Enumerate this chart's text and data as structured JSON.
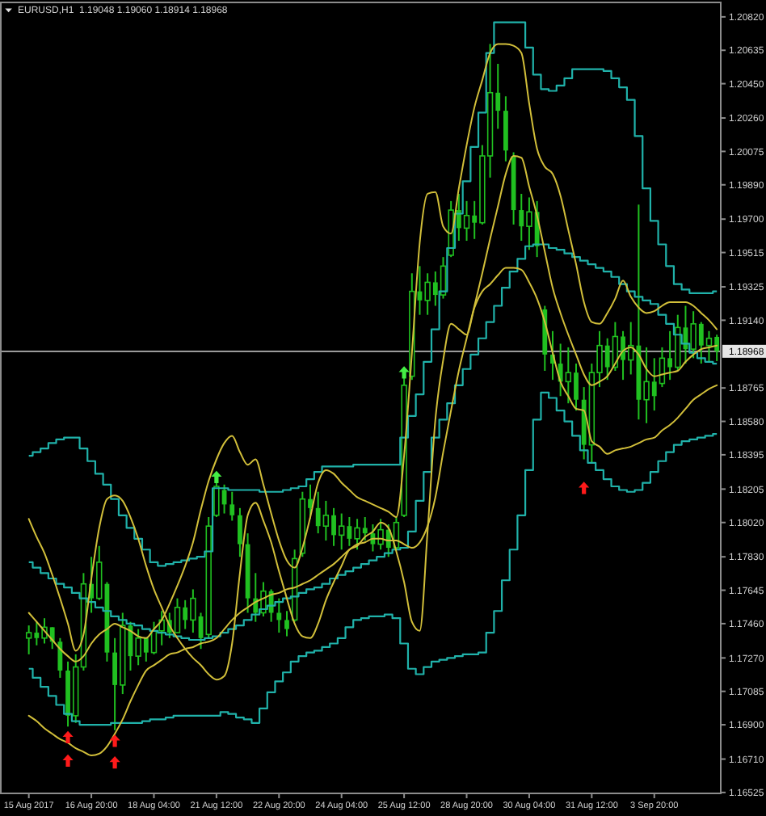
{
  "chart_data": {
    "type": "candlestick",
    "title": "EURUSD,H1  1.19048 1.19060 1.18914 1.18968",
    "categories": [
      "15 Aug 2017",
      null,
      null,
      null,
      null,
      null,
      null,
      null,
      "16 Aug 20:00",
      null,
      null,
      null,
      null,
      null,
      null,
      null,
      "18 Aug 04:00",
      null,
      null,
      null,
      null,
      null,
      null,
      null,
      "21 Aug 12:00",
      null,
      null,
      null,
      null,
      null,
      null,
      null,
      "22 Aug 20:00",
      null,
      null,
      null,
      null,
      null,
      null,
      null,
      "24 Aug 04:00",
      null,
      null,
      null,
      null,
      null,
      null,
      null,
      "25 Aug 12:00",
      null,
      null,
      null,
      null,
      null,
      null,
      null,
      "28 Aug 20:00",
      null,
      null,
      null,
      null,
      null,
      null,
      null,
      "30 Aug 04:00",
      null,
      null,
      null,
      null,
      null,
      null,
      null,
      "31 Aug 12:00",
      null,
      null,
      null,
      null,
      null,
      null,
      null,
      "3 Sep 20:00",
      null,
      null,
      null,
      null,
      null,
      null,
      null,
      null
    ],
    "ylim": [
      1.1652,
      1.209
    ],
    "yticks": [
      {
        "value": 1.2082,
        "label": "1.20820"
      },
      1.20635,
      {
        "value": 1.2045,
        "label": "1.20450"
      },
      {
        "value": 1.2026,
        "label": "1.20260"
      },
      1.20075,
      {
        "value": 1.1989,
        "label": "1.19890"
      },
      {
        "value": 1.197,
        "label": "1.19700"
      },
      1.19515,
      1.19325,
      {
        "value": 1.1914,
        "label": "1.19140"
      },
      1.18765,
      {
        "value": 1.1858,
        "label": "1.18580"
      },
      1.18395,
      1.18205,
      {
        "value": 1.1802,
        "label": "1.18020"
      },
      {
        "value": 1.1783,
        "label": "1.17830"
      },
      1.17645,
      {
        "value": 1.1746,
        "label": "1.17460"
      },
      {
        "value": 1.1727,
        "label": "1.17270"
      },
      1.17085,
      {
        "value": 1.169,
        "label": "1.16900"
      },
      {
        "value": 1.1671,
        "label": "1.16710"
      },
      1.16525
    ],
    "ref_lines": [
      {
        "axis": "y",
        "value": 1.18968,
        "label": "1.18968",
        "color": "#b4b4b4"
      }
    ],
    "series": [
      {
        "color": "#20c020",
        "ohlc": [
          [
            1.1738,
            1.1745,
            1.1729,
            1.1741
          ],
          [
            1.1741,
            1.1747,
            1.1734,
            1.1738
          ],
          [
            1.1738,
            1.1749,
            1.1735,
            1.1744
          ],
          [
            1.1744,
            1.1744,
            1.1732,
            1.1736
          ],
          [
            1.1736,
            1.1738,
            1.1716,
            1.172
          ],
          [
            1.172,
            1.1725,
            1.1689,
            1.1695
          ],
          [
            1.1695,
            1.1729,
            1.1691,
            1.1722
          ],
          [
            1.1722,
            1.1774,
            1.172,
            1.1768
          ],
          [
            1.1768,
            1.1783,
            1.1752,
            1.176
          ],
          [
            1.176,
            1.1789,
            1.1759,
            1.178
          ],
          [
            1.1768,
            1.1769,
            1.1725,
            1.173
          ],
          [
            1.173,
            1.1738,
            1.1687,
            1.1712
          ],
          [
            1.1712,
            1.1752,
            1.1707,
            1.1745
          ],
          [
            1.1745,
            1.1747,
            1.172,
            1.1728
          ],
          [
            1.1728,
            1.1743,
            1.1723,
            1.1738
          ],
          [
            1.1738,
            1.1738,
            1.1725,
            1.173
          ],
          [
            1.173,
            1.1747,
            1.1729,
            1.1742
          ],
          [
            1.1742,
            1.1753,
            1.1734,
            1.1748
          ],
          [
            1.1748,
            1.1752,
            1.1738,
            1.1741
          ],
          [
            1.1741,
            1.176,
            1.1741,
            1.1755
          ],
          [
            1.1755,
            1.1759,
            1.1743,
            1.1748
          ],
          [
            1.1748,
            1.1765,
            1.1741,
            1.176
          ],
          [
            1.175,
            1.1752,
            1.1732,
            1.1738
          ],
          [
            1.174,
            1.1805,
            1.1738,
            1.18
          ],
          [
            1.1806,
            1.1828,
            1.1805,
            1.1822
          ],
          [
            1.182,
            1.1823,
            1.1807,
            1.1812
          ],
          [
            1.1812,
            1.1819,
            1.1803,
            1.1806
          ],
          [
            1.1806,
            1.181,
            1.1783,
            1.179
          ],
          [
            1.179,
            1.1796,
            1.1752,
            1.176
          ],
          [
            1.176,
            1.1774,
            1.1747,
            1.1752
          ],
          [
            1.1752,
            1.1769,
            1.175,
            1.1764
          ],
          [
            1.1764,
            1.1765,
            1.1747,
            1.1752
          ],
          [
            1.1752,
            1.176,
            1.1741,
            1.1748
          ],
          [
            1.1748,
            1.1753,
            1.1739,
            1.1743
          ],
          [
            1.1748,
            1.1787,
            1.1747,
            1.1782
          ],
          [
            1.1785,
            1.1819,
            1.1783,
            1.1815
          ],
          [
            1.1815,
            1.1823,
            1.1804,
            1.181
          ],
          [
            1.181,
            1.1819,
            1.1796,
            1.18
          ],
          [
            1.18,
            1.1814,
            1.1792,
            1.1806
          ],
          [
            1.1806,
            1.181,
            1.1789,
            1.1795
          ],
          [
            1.1795,
            1.1807,
            1.1787,
            1.18
          ],
          [
            1.18,
            1.1805,
            1.1789,
            1.1793
          ],
          [
            1.1793,
            1.1804,
            1.1787,
            1.1799
          ],
          [
            1.1799,
            1.1805,
            1.1792,
            1.1796
          ],
          [
            1.1796,
            1.1801,
            1.1786,
            1.179
          ],
          [
            1.179,
            1.1804,
            1.1787,
            1.1798
          ],
          [
            1.1798,
            1.1801,
            1.1783,
            1.1788
          ],
          [
            1.1788,
            1.1805,
            1.1787,
            1.1802
          ],
          [
            1.1806,
            1.1884,
            1.1805,
            1.1878
          ],
          [
            1.1883,
            1.194,
            1.1881,
            1.193
          ],
          [
            1.193,
            1.1944,
            1.1917,
            1.1925
          ],
          [
            1.1925,
            1.194,
            1.1917,
            1.1935
          ],
          [
            1.1935,
            1.1941,
            1.1922,
            1.1928
          ],
          [
            1.1928,
            1.1949,
            1.1926,
            1.1944
          ],
          [
            1.195,
            1.198,
            1.1949,
            1.1975
          ],
          [
            1.1975,
            1.1984,
            1.1958,
            1.1965
          ],
          [
            1.1965,
            1.198,
            1.1958,
            1.1972
          ],
          [
            1.1972,
            1.198,
            1.1959,
            1.1968
          ],
          [
            1.1968,
            1.2011,
            1.1967,
            1.2005
          ],
          [
            1.2005,
            1.2067,
            1.1993,
            1.204
          ],
          [
            1.204,
            1.2056,
            1.202,
            1.203
          ],
          [
            1.203,
            1.2038,
            1.2002,
            1.2008
          ],
          [
            1.2005,
            1.2007,
            1.1967,
            1.1975
          ],
          [
            1.1975,
            1.1984,
            1.1958,
            1.1966
          ],
          [
            1.1966,
            1.1982,
            1.1953,
            1.1974
          ],
          [
            1.1974,
            1.198,
            1.1949,
            1.1955
          ],
          [
            1.192,
            1.1922,
            1.1886,
            1.1895
          ],
          [
            1.1895,
            1.1908,
            1.1881,
            1.189
          ],
          [
            1.189,
            1.1901,
            1.1872,
            1.188
          ],
          [
            1.188,
            1.1899,
            1.1868,
            1.1885
          ],
          [
            1.1885,
            1.189,
            1.1864,
            1.187
          ],
          [
            1.187,
            1.1877,
            1.1837,
            1.1845
          ],
          [
            1.1845,
            1.189,
            1.1835,
            1.1885
          ],
          [
            1.1885,
            1.1908,
            1.1877,
            1.19
          ],
          [
            1.19,
            1.1904,
            1.1881,
            1.1888
          ],
          [
            1.1888,
            1.1913,
            1.1886,
            1.1905
          ],
          [
            1.1905,
            1.1908,
            1.1881,
            1.1892
          ],
          [
            1.1892,
            1.1913,
            1.1884,
            1.19
          ],
          [
            1.19,
            1.1978,
            1.1859,
            1.187
          ],
          [
            1.187,
            1.1899,
            1.1857,
            1.188
          ],
          [
            1.188,
            1.1893,
            1.1864,
            1.1872
          ],
          [
            1.1879,
            1.1899,
            1.1877,
            1.1893
          ],
          [
            1.1893,
            1.1908,
            1.1881,
            1.1888
          ],
          [
            1.1888,
            1.1917,
            1.1886,
            1.191
          ],
          [
            1.191,
            1.1922,
            1.189,
            1.1898
          ],
          [
            1.1898,
            1.1919,
            1.1893,
            1.1912
          ],
          [
            1.1912,
            1.1913,
            1.189,
            1.19
          ],
          [
            1.19,
            1.1908,
            1.1891,
            1.1904
          ],
          [
            1.19048,
            1.1906,
            1.18914,
            1.18968
          ]
        ]
      },
      {
        "type": "step",
        "color": "#20b2aa",
        "values": [
          1.1839,
          1.1841,
          1.1843,
          1.1846,
          1.1848,
          1.1849,
          1.1849,
          1.1843,
          1.1836,
          1.1829,
          1.1823,
          1.1815,
          1.1806,
          1.1799,
          1.1793,
          1.1787,
          1.178,
          1.1778,
          1.1779,
          1.178,
          1.1781,
          1.1782,
          1.1783,
          1.1786,
          1.1821,
          1.1821,
          1.182,
          1.182,
          1.182,
          1.182,
          1.1819,
          1.1819,
          1.1819,
          1.182,
          1.1821,
          1.1822,
          1.1826,
          1.183,
          1.1833,
          1.1833,
          1.1833,
          1.1833,
          1.1834,
          1.1834,
          1.1834,
          1.1834,
          1.1834,
          1.1834,
          1.1849,
          1.1861,
          1.1873,
          1.1891,
          1.1909,
          1.193,
          1.1954,
          1.1973,
          1.1991,
          1.201,
          1.2029,
          1.2062,
          1.2079,
          1.2079,
          1.2079,
          1.2079,
          1.2065,
          1.205,
          1.2042,
          1.2041,
          1.2044,
          1.2048,
          1.2053,
          1.2053,
          1.2053,
          1.2053,
          1.2052,
          1.2048,
          1.2043,
          1.2036,
          1.2016,
          1.1987,
          1.1969,
          1.1956,
          1.1944,
          1.1934,
          1.1931,
          1.1929,
          1.1929,
          1.1929,
          1.193
        ]
      },
      {
        "type": "step",
        "color": "#20b2aa",
        "values": [
          1.178,
          1.1777,
          1.1774,
          1.1771,
          1.1768,
          1.1766,
          1.1763,
          1.176,
          1.1758,
          1.1755,
          1.1753,
          1.175,
          1.1748,
          1.1746,
          1.1745,
          1.1743,
          1.1742,
          1.1741,
          1.174,
          1.1739,
          1.1738,
          1.1737,
          1.1737,
          1.1738,
          1.1739,
          1.1741,
          1.1743,
          1.1745,
          1.1748,
          1.1751,
          1.1754,
          1.1756,
          1.1758,
          1.176,
          1.1761,
          1.1763,
          1.1765,
          1.1766,
          1.1768,
          1.1771,
          1.1773,
          1.1775,
          1.1777,
          1.1779,
          1.1781,
          1.1783,
          1.1785,
          1.1787,
          1.1788,
          1.1797,
          1.1814,
          1.183,
          1.1849,
          1.1859,
          1.1868,
          1.1878,
          1.1887,
          1.1895,
          1.1904,
          1.1913,
          1.1922,
          1.1932,
          1.1941,
          1.1948,
          1.1955,
          1.1956,
          1.1956,
          1.1954,
          1.1953,
          1.1951,
          1.1949,
          1.1947,
          1.1945,
          1.1943,
          1.1941,
          1.1938,
          1.1934,
          1.193,
          1.1927,
          1.1925,
          1.1923,
          1.1917,
          1.1912,
          1.1906,
          1.1901,
          1.1896,
          1.1893,
          1.1891,
          1.189
        ]
      },
      {
        "type": "step",
        "color": "#20b2aa",
        "values": [
          1.1721,
          1.1716,
          1.1711,
          1.1706,
          1.1701,
          1.1696,
          1.1692,
          1.169,
          1.169,
          1.169,
          1.169,
          1.1691,
          1.1691,
          1.1691,
          1.1691,
          1.1692,
          1.1693,
          1.1693,
          1.1694,
          1.1695,
          1.1695,
          1.1695,
          1.1695,
          1.1695,
          1.1695,
          1.1697,
          1.1696,
          1.1694,
          1.1693,
          1.1691,
          1.1699,
          1.1708,
          1.1714,
          1.1719,
          1.1725,
          1.1728,
          1.173,
          1.1731,
          1.1733,
          1.1735,
          1.1738,
          1.1744,
          1.1748,
          1.1749,
          1.175,
          1.175,
          1.1751,
          1.1749,
          1.1735,
          1.1721,
          1.1718,
          1.1722,
          1.1725,
          1.1726,
          1.1727,
          1.1728,
          1.1729,
          1.1729,
          1.173,
          1.1741,
          1.1753,
          1.177,
          1.1787,
          1.1806,
          1.1831,
          1.1859,
          1.1874,
          1.1871,
          1.1864,
          1.1858,
          1.185,
          1.1842,
          1.1835,
          1.1831,
          1.1826,
          1.1822,
          1.182,
          1.1819,
          1.182,
          1.1824,
          1.183,
          1.1836,
          1.1841,
          1.1845,
          1.1847,
          1.1848,
          1.1849,
          1.185,
          1.1851
        ]
      },
      {
        "type": "line",
        "color": "#d2bf3a",
        "values": [
          1.1804,
          1.1794,
          1.1785,
          1.1773,
          1.176,
          1.1746,
          1.1731,
          1.174,
          1.1771,
          1.1799,
          1.1815,
          1.1817,
          1.1814,
          1.1805,
          1.1793,
          1.1778,
          1.1765,
          1.1755,
          1.1745,
          1.1738,
          1.1732,
          1.1727,
          1.1723,
          1.1718,
          1.1715,
          1.1717,
          1.1735,
          1.1774,
          1.1806,
          1.1813,
          1.1803,
          1.1791,
          1.1775,
          1.176,
          1.1746,
          1.1739,
          1.1738,
          1.1746,
          1.1759,
          1.1769,
          1.1778,
          1.1787,
          1.1789,
          1.1794,
          1.1797,
          1.1802,
          1.1799,
          1.1786,
          1.1769,
          1.1747,
          1.1742,
          1.1797,
          1.1859,
          1.1892,
          1.1912,
          1.1909,
          1.1906,
          1.1921,
          1.193,
          1.1934,
          1.1939,
          1.1943,
          1.1943,
          1.1942,
          1.1935,
          1.1926,
          1.1913,
          1.1896,
          1.188,
          1.1872,
          1.1865,
          1.1864,
          1.1847,
          1.1844,
          1.184,
          1.1842,
          1.1843,
          1.1844,
          1.1846,
          1.1848,
          1.1849,
          1.1853,
          1.1856,
          1.186,
          1.1865,
          1.187,
          1.1873,
          1.1876,
          1.1878
        ]
      },
      {
        "type": "line",
        "color": "#d2bf3a",
        "values": [
          1.1752,
          1.1747,
          1.1742,
          1.1737,
          1.1732,
          1.1728,
          1.1725,
          1.1728,
          1.1735,
          1.174,
          1.1743,
          1.1746,
          1.1744,
          1.1742,
          1.1739,
          1.1738,
          1.1743,
          1.1748,
          1.1757,
          1.1767,
          1.1778,
          1.1791,
          1.1809,
          1.1825,
          1.1837,
          1.1846,
          1.185,
          1.1841,
          1.1834,
          1.1837,
          1.1823,
          1.1807,
          1.1792,
          1.1781,
          1.1777,
          1.1788,
          1.1805,
          1.1824,
          1.1831,
          1.1829,
          1.1824,
          1.182,
          1.1816,
          1.1814,
          1.1812,
          1.181,
          1.1808,
          1.1805,
          1.1839,
          1.1896,
          1.1957,
          1.1984,
          1.1985,
          1.1966,
          1.1962,
          1.1987,
          1.2011,
          1.2032,
          1.2047,
          1.2062,
          1.2067,
          1.2067,
          1.2066,
          1.2062,
          1.2034,
          1.2009,
          1.1999,
          1.1995,
          1.1983,
          1.1964,
          1.1945,
          1.1924,
          1.1913,
          1.1912,
          1.1918,
          1.1926,
          1.1936,
          1.1927,
          1.1921,
          1.1918,
          1.1919,
          1.1922,
          1.1924,
          1.1924,
          1.1924,
          1.1922,
          1.1918,
          1.1914,
          1.1909
        ]
      },
      {
        "type": "line",
        "color": "#d2bf3a",
        "values": [
          1.1695,
          1.1692,
          1.1688,
          1.1685,
          1.1682,
          1.168,
          1.1677,
          1.1675,
          1.1673,
          1.1674,
          1.1678,
          1.1685,
          1.1693,
          1.1703,
          1.1712,
          1.172,
          1.1723,
          1.1726,
          1.1729,
          1.173,
          1.1732,
          1.1733,
          1.1735,
          1.1736,
          1.1738,
          1.1743,
          1.1748,
          1.1752,
          1.1755,
          1.1758,
          1.176,
          1.1762,
          1.1763,
          1.1765,
          1.1766,
          1.1768,
          1.177,
          1.1773,
          1.1776,
          1.1779,
          1.1783,
          1.1787,
          1.179,
          1.1791,
          1.1793,
          1.1793,
          1.1792,
          1.1792,
          1.179,
          1.1788,
          1.1791,
          1.18,
          1.1816,
          1.1841,
          1.1864,
          1.1886,
          1.1904,
          1.1922,
          1.194,
          1.1959,
          1.1977,
          1.1995,
          1.2005,
          1.2004,
          1.1988,
          1.1972,
          1.1952,
          1.1932,
          1.1918,
          1.1906,
          1.1895,
          1.1884,
          1.1878,
          1.188,
          1.1883,
          1.189,
          1.1897,
          1.1899,
          1.1895,
          1.1887,
          1.1883,
          1.1884,
          1.1885,
          1.1886,
          1.1891,
          1.1895,
          1.1898,
          1.1899,
          1.19
        ]
      },
      {
        "type": "scatter",
        "color": "#ff1a1a",
        "marker": "triangle",
        "values": [
          null,
          null,
          null,
          null,
          null,
          1.1683,
          null,
          null,
          null,
          null,
          null,
          1.1681,
          null,
          null,
          null,
          null,
          null,
          null,
          null,
          null,
          null,
          null,
          null,
          null,
          null,
          null,
          null,
          null,
          null,
          null,
          null,
          null,
          null,
          null,
          null,
          null,
          null,
          null,
          null,
          null,
          null,
          null,
          null,
          null,
          null,
          null,
          null,
          null,
          null,
          null,
          null,
          null,
          null,
          null,
          null,
          null,
          null,
          null,
          null,
          null,
          null,
          null,
          null,
          null,
          null,
          null,
          null,
          null,
          null,
          null,
          null,
          1.1821,
          null,
          null,
          null,
          null,
          null,
          null,
          null,
          null,
          null,
          null,
          null,
          null,
          null,
          null,
          null,
          null,
          null
        ]
      },
      {
        "type": "scatter",
        "color": "#ff1a1a",
        "marker": "triangle",
        "values": [
          null,
          null,
          null,
          null,
          null,
          1.167,
          null,
          null,
          null,
          null,
          null,
          1.1669,
          null,
          null,
          null,
          null,
          null,
          null,
          null,
          null,
          null,
          null,
          null,
          null,
          null,
          null,
          null,
          null,
          null,
          null,
          null,
          null,
          null,
          null,
          null,
          null,
          null,
          null,
          null,
          null,
          null,
          null,
          null,
          null,
          null,
          null,
          null,
          null,
          null,
          null,
          null,
          null,
          null,
          null,
          null,
          null,
          null,
          null,
          null,
          null,
          null,
          null,
          null,
          null,
          null,
          null,
          null,
          null,
          null,
          null,
          null,
          null,
          null,
          null,
          null,
          null,
          null,
          null,
          null,
          null,
          null,
          null,
          null,
          null,
          null,
          null,
          null,
          null,
          null
        ]
      },
      {
        "type": "scatter",
        "color": "#44ee44",
        "marker": "triangle",
        "values": [
          null,
          null,
          null,
          null,
          null,
          null,
          null,
          null,
          null,
          null,
          null,
          null,
          null,
          null,
          null,
          null,
          null,
          null,
          null,
          null,
          null,
          null,
          null,
          null,
          1.1827,
          null,
          null,
          null,
          null,
          null,
          null,
          null,
          null,
          null,
          null,
          null,
          null,
          null,
          null,
          null,
          null,
          null,
          null,
          null,
          null,
          null,
          null,
          null,
          1.1885,
          null,
          null,
          null,
          null,
          null,
          null,
          null,
          null,
          null,
          null,
          null,
          null,
          null,
          null,
          null,
          null,
          null,
          null,
          null,
          null,
          null,
          null,
          null,
          null,
          null,
          null,
          null,
          null,
          null,
          null,
          null,
          null,
          null,
          null,
          null,
          null,
          null,
          null,
          null,
          null
        ]
      }
    ]
  }
}
